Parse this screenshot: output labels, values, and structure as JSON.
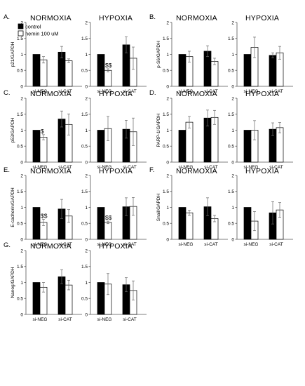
{
  "legend": {
    "control": "control",
    "hemin": "hemin 100 uM"
  },
  "colors": {
    "control": "#000000",
    "hemin": "#ffffff",
    "edge": "#000000"
  },
  "chart_data": [
    {
      "type": "bar",
      "panel": "A.",
      "title": "NORMOXIA",
      "ylabel": "p21/GAPDH",
      "ylim": [
        0,
        2
      ],
      "yticks": [
        "0",
        "0.5",
        "1",
        "1.5",
        "2"
      ],
      "categories": [
        "si-NEG",
        "si-CAT"
      ],
      "series": [
        {
          "name": "control",
          "values": [
            1.0,
            1.07
          ],
          "err": [
            0.0,
            0.18
          ]
        },
        {
          "name": "hemin 100 uM",
          "values": [
            0.83,
            0.8
          ],
          "err": [
            0.1,
            0.06
          ]
        }
      ],
      "annotations": []
    },
    {
      "type": "bar",
      "title": "HYPOXIA",
      "ylim": [
        0,
        2
      ],
      "yticks": [
        "0",
        "0.5",
        "1",
        "1.5",
        "2"
      ],
      "categories": [
        "si-NEG",
        "si-CAT"
      ],
      "series": [
        {
          "name": "control",
          "values": [
            1.0,
            1.3
          ],
          "err": [
            0.0,
            0.25
          ]
        },
        {
          "name": "hemin 100 uM",
          "values": [
            0.5,
            0.88
          ],
          "err": [
            0.05,
            0.35
          ]
        }
      ],
      "annotations": [
        {
          "text": "$$",
          "category": 0,
          "series": 1
        }
      ]
    },
    {
      "type": "bar",
      "panel": "B.",
      "title": "NORMOXIA",
      "ylabel": "p-S6/GAPDH",
      "ylim": [
        0,
        2
      ],
      "yticks": [
        "0",
        "0.5",
        "1",
        "1.5",
        "2"
      ],
      "categories": [
        "si-NEG",
        "si-CAT"
      ],
      "series": [
        {
          "name": "control",
          "values": [
            1.0,
            1.1
          ],
          "err": [
            0.0,
            0.17
          ]
        },
        {
          "name": "hemin 100 uM",
          "values": [
            0.93,
            0.78
          ],
          "err": [
            0.17,
            0.1
          ]
        }
      ],
      "annotations": []
    },
    {
      "type": "bar",
      "title": "HYPOXIA",
      "ylim": [
        0,
        2
      ],
      "yticks": [
        "0",
        "0.5",
        "1",
        "1.5",
        "2"
      ],
      "categories": [
        "si-NEG",
        "si-CAT"
      ],
      "series": [
        {
          "name": "control",
          "values": [
            1.0,
            0.97
          ],
          "err": [
            0.0,
            0.08
          ]
        },
        {
          "name": "hemin 100 uM",
          "values": [
            1.22,
            1.05
          ],
          "err": [
            0.32,
            0.2
          ]
        }
      ],
      "annotations": []
    },
    {
      "type": "bar",
      "panel": "C.",
      "title": "NORMOXIA",
      "ylabel": "p53/GAPDH",
      "ylim": [
        0,
        2
      ],
      "yticks": [
        "0",
        "0.5",
        "1",
        "1.5",
        "2"
      ],
      "categories": [
        "si-NEG",
        "si-CAT"
      ],
      "series": [
        {
          "name": "control",
          "values": [
            1.0,
            1.35
          ],
          "err": [
            0.0,
            0.25
          ]
        },
        {
          "name": "hemin 100 uM",
          "values": [
            0.78,
            1.18
          ],
          "err": [
            0.08,
            0.33
          ]
        }
      ],
      "annotations": [
        {
          "text": "$",
          "category": 0,
          "series": 1
        }
      ]
    },
    {
      "type": "bar",
      "title": "HYPOXIA",
      "ylim": [
        0,
        2
      ],
      "yticks": [
        "0",
        "0.5",
        "1",
        "1.5",
        "2"
      ],
      "categories": [
        "si-NEG",
        "si-CAT"
      ],
      "series": [
        {
          "name": "control",
          "values": [
            1.0,
            1.03
          ],
          "err": [
            0.0,
            0.28
          ]
        },
        {
          "name": "hemin 100 uM",
          "values": [
            1.05,
            0.95
          ],
          "err": [
            0.38,
            0.43
          ]
        }
      ],
      "annotations": []
    },
    {
      "type": "bar",
      "panel": "D.",
      "title": "NORMOXIA",
      "ylabel": "PARP-1/GAPDH",
      "ylim": [
        0,
        2
      ],
      "yticks": [
        "0",
        "0.5",
        "1",
        "1.5",
        "2"
      ],
      "categories": [
        "si-NEG",
        "si-CAT"
      ],
      "series": [
        {
          "name": "control",
          "values": [
            1.0,
            1.38
          ],
          "err": [
            0.0,
            0.25
          ]
        },
        {
          "name": "hemin 100 uM",
          "values": [
            1.25,
            1.4
          ],
          "err": [
            0.18,
            0.22
          ]
        }
      ],
      "annotations": []
    },
    {
      "type": "bar",
      "title": "HYPOXIA",
      "ylim": [
        0,
        2
      ],
      "yticks": [
        "0",
        "0.5",
        "1",
        "1.5",
        "2"
      ],
      "categories": [
        "si-NEG",
        "si-CAT"
      ],
      "series": [
        {
          "name": "control",
          "values": [
            1.0,
            1.03
          ],
          "err": [
            0.0,
            0.2
          ]
        },
        {
          "name": "hemin 100 uM",
          "values": [
            1.0,
            1.08
          ],
          "err": [
            0.3,
            0.16
          ]
        }
      ],
      "annotations": []
    },
    {
      "type": "bar",
      "panel": "E.",
      "title": "NORMOXIA",
      "ylabel": "E-cadherin/GAPDH",
      "ylim": [
        0,
        2
      ],
      "yticks": [
        "0",
        "0.5",
        "1",
        "1.5",
        "2"
      ],
      "categories": [
        "si-NEG",
        "si-CAT"
      ],
      "series": [
        {
          "name": "control",
          "values": [
            1.0,
            0.95
          ],
          "err": [
            0.0,
            0.3
          ]
        },
        {
          "name": "hemin 100 uM",
          "values": [
            0.53,
            0.73
          ],
          "err": [
            0.1,
            0.2
          ]
        }
      ],
      "annotations": [
        {
          "text": "$$",
          "category": 0,
          "series": 1
        }
      ]
    },
    {
      "type": "bar",
      "title": "HYPOXIA",
      "ylim": [
        0,
        2
      ],
      "yticks": [
        "0",
        "0.5",
        "1",
        "1.5",
        "2"
      ],
      "categories": [
        "si-NEG",
        "si-CAT"
      ],
      "series": [
        {
          "name": "control",
          "values": [
            1.0,
            1.02
          ],
          "err": [
            0.0,
            0.28
          ]
        },
        {
          "name": "hemin 100 uM",
          "values": [
            0.53,
            1.03
          ],
          "err": [
            0.04,
            0.28
          ]
        }
      ],
      "annotations": [
        {
          "text": "$$",
          "category": 0,
          "series": 1
        }
      ]
    },
    {
      "type": "bar",
      "panel": "F.",
      "title": "NORMOXIA",
      "ylabel": "Snail/GAPDH",
      "ylim": [
        0,
        2
      ],
      "yticks": [
        "0",
        "0.5",
        "1",
        "1.5",
        "2"
      ],
      "categories": [
        "si-NEG",
        "si-CAT"
      ],
      "series": [
        {
          "name": "control",
          "values": [
            1.0,
            1.02
          ],
          "err": [
            0.0,
            0.28
          ]
        },
        {
          "name": "hemin 100 uM",
          "values": [
            0.83,
            0.65
          ],
          "err": [
            0.08,
            0.1
          ]
        }
      ],
      "annotations": []
    },
    {
      "type": "bar",
      "title": "HYPOXIA",
      "ylim": [
        0,
        2
      ],
      "yticks": [
        "0",
        "0.5",
        "1",
        "1.5",
        "2"
      ],
      "categories": [
        "si-NEG",
        "si-CAT"
      ],
      "series": [
        {
          "name": "control",
          "values": [
            1.0,
            0.83
          ],
          "err": [
            0.0,
            0.35
          ]
        },
        {
          "name": "hemin 100 uM",
          "values": [
            0.57,
            0.92
          ],
          "err": [
            0.3,
            0.23
          ]
        }
      ],
      "annotations": []
    },
    {
      "type": "bar",
      "panel": "G.",
      "title": "NORMOXIA",
      "ylabel": "Nanog/GAPDH",
      "ylim": [
        0,
        2
      ],
      "yticks": [
        "0",
        "0.5",
        "1",
        "1.5",
        "2"
      ],
      "categories": [
        "si-NEG",
        "si-CAT"
      ],
      "series": [
        {
          "name": "control",
          "values": [
            1.0,
            1.18
          ],
          "err": [
            0.0,
            0.22
          ]
        },
        {
          "name": "hemin 100 uM",
          "values": [
            0.85,
            0.92
          ],
          "err": [
            0.15,
            0.15
          ]
        }
      ],
      "annotations": []
    },
    {
      "type": "bar",
      "title": "HYPOXIA",
      "ylim": [
        0,
        2
      ],
      "yticks": [
        "0",
        "0.5",
        "1",
        "1.5",
        "2"
      ],
      "categories": [
        "si-NEG",
        "si-CAT"
      ],
      "series": [
        {
          "name": "control",
          "values": [
            1.0,
            0.93
          ],
          "err": [
            0.0,
            0.22
          ]
        },
        {
          "name": "hemin 100 uM",
          "values": [
            0.95,
            0.75
          ],
          "err": [
            0.33,
            0.3
          ]
        }
      ],
      "annotations": []
    }
  ]
}
